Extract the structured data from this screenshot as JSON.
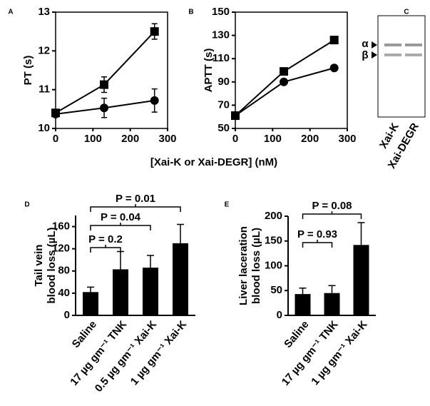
{
  "chart_data": [
    {
      "type": "line",
      "label": "A",
      "ylabel": "PT (s)",
      "x": [
        0,
        130,
        265
      ],
      "xlim": [
        0,
        300
      ],
      "xticks": [
        0,
        100,
        200,
        300
      ],
      "ylim": [
        10,
        13
      ],
      "yticks": [
        10,
        11,
        12,
        13
      ],
      "series": [
        {
          "marker": "square",
          "color": "#000000",
          "values": [
            10.4,
            11.13,
            12.5
          ],
          "errors": [
            0.05,
            0.2,
            0.2
          ]
        },
        {
          "marker": "circle",
          "color": "#000000",
          "values": [
            10.37,
            10.53,
            10.72
          ],
          "errors": [
            0.05,
            0.25,
            0.3
          ]
        }
      ]
    },
    {
      "type": "line",
      "label": "B",
      "ylabel": "APTT (s)",
      "x": [
        0,
        130,
        265
      ],
      "xlim": [
        0,
        300
      ],
      "xticks": [
        0,
        100,
        200,
        300
      ],
      "ylim": [
        50,
        150
      ],
      "yticks": [
        50,
        70,
        90,
        110,
        130,
        150
      ],
      "series": [
        {
          "marker": "square",
          "color": "#000000",
          "values": [
            61,
            99,
            126
          ]
        },
        {
          "marker": "circle",
          "color": "#000000",
          "values": [
            61,
            90,
            102
          ]
        }
      ]
    },
    {
      "type": "bar",
      "label": "D",
      "ylabel": [
        "Tail vein",
        "blood loss (µL)"
      ],
      "color": "#000000",
      "categories": [
        "Saline",
        "17 µg gm⁻¹ TNK",
        "0.5 µg gm⁻¹ Xai-K",
        "1 µg gm⁻¹ Xai-K"
      ],
      "values": [
        42,
        83,
        86,
        130
      ],
      "errors": [
        9,
        32,
        22,
        34
      ],
      "ylim": [
        0,
        180
      ],
      "yticks": [
        0,
        40,
        80,
        120,
        160
      ],
      "comparisons": [
        {
          "label": "P = 0.2"
        },
        {
          "label": "P = 0.04"
        },
        {
          "label": "P = 0.01"
        }
      ]
    },
    {
      "type": "bar",
      "label": "E",
      "ylabel": [
        "Liver laceration",
        "blood loss (µL)"
      ],
      "color": "#000000",
      "categories": [
        "Saline",
        "17 µg gm⁻¹ TNK",
        "1 µg gm⁻¹ Xai-K"
      ],
      "values": [
        43,
        45,
        142
      ],
      "errors": [
        12,
        15,
        45
      ],
      "ylim": [
        0,
        200
      ],
      "yticks": [
        0,
        50,
        100,
        150,
        200
      ],
      "comparisons": [
        {
          "label": "P = 0.93"
        },
        {
          "label": "P = 0.08"
        }
      ]
    }
  ],
  "shared_xlabel": "[Xai-K or Xai-DEGR] (nM)",
  "gel": {
    "label": "C",
    "bands": [
      "α",
      "β"
    ],
    "lanes": [
      "Xai-K",
      "Xai-DEGR"
    ]
  }
}
